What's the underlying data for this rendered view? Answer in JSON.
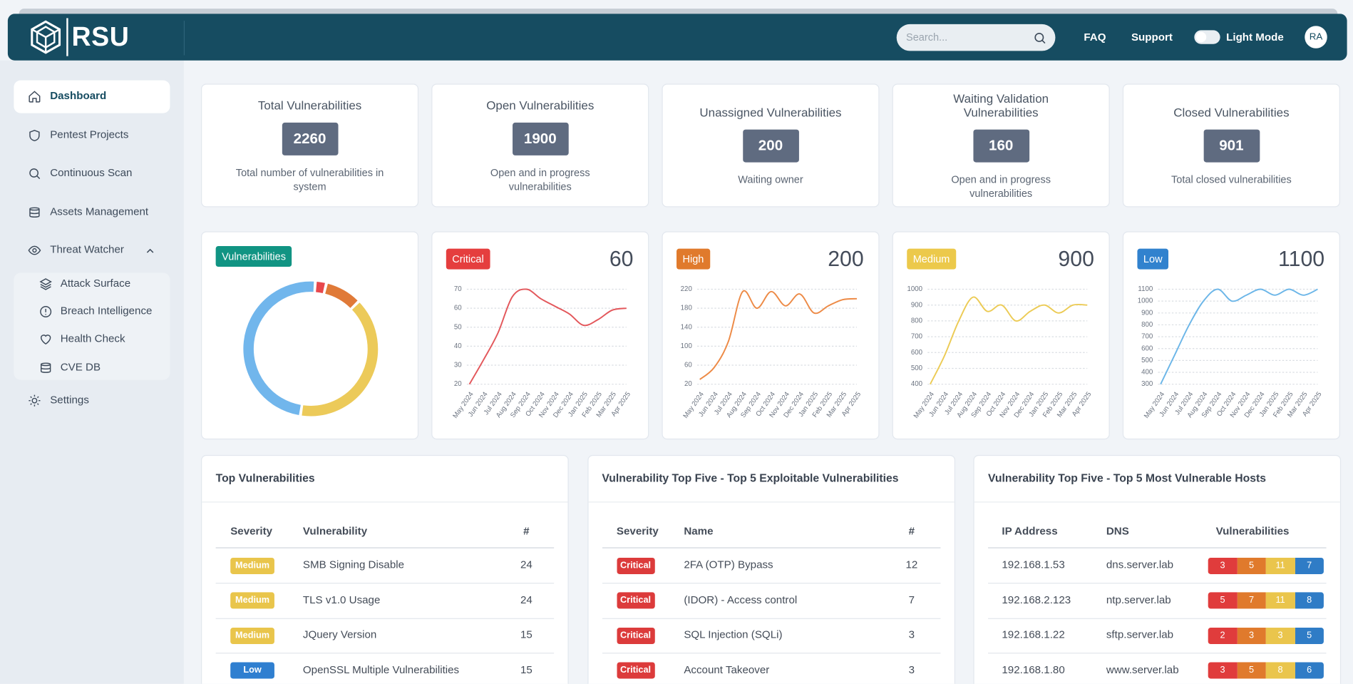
{
  "header": {
    "logo": "RSU",
    "search_placeholder": "Search...",
    "links": [
      "FAQ",
      "Support"
    ],
    "mode_label": "Light Mode",
    "avatar": "RA"
  },
  "sidebar": {
    "items": [
      "Dashboard",
      "Pentest Projects",
      "Continuous Scan",
      "Assets Management",
      "Threat Watcher",
      "Settings"
    ],
    "submenu": [
      "Attack Surface",
      "Breach Intelligence",
      "Health Check",
      "CVE DB"
    ]
  },
  "stat_cards": [
    {
      "title": "Total Vulnerabilities",
      "value": 2260,
      "description": "Total number of vulnerabilities in system"
    },
    {
      "title": "Open Vulnerabilities",
      "value": 1900,
      "description": "Open and in progress vulnerabilities"
    },
    {
      "title": "Unassigned Vulnerabilities",
      "value": 200,
      "description": "Waiting owner"
    },
    {
      "title": "Waiting Validation Vulnerabilities",
      "value": 160,
      "description": "Open and in progress vulnerabilities"
    },
    {
      "title": "Closed Vulnerabilities",
      "value": 901,
      "description": "Total closed vulnerabilities"
    }
  ],
  "chart_data": [
    {
      "type": "donut",
      "title": "Vulnerabilities",
      "title_color": "#119483",
      "values": [
        60,
        200,
        900,
        1100
      ],
      "colors": [
        "#e8474c",
        "#e07a38",
        "#ecca59",
        "#71b6ec"
      ]
    },
    {
      "type": "line",
      "badge": "Critical",
      "badge_color": "#e53e3e",
      "total": 60,
      "color": "#e3575b",
      "categories": [
        "May 2024",
        "Jun 2024",
        "Jul 2024",
        "Aug 2024",
        "Sep 2024",
        "Oct 2024",
        "Nov 2024",
        "Dec 2024",
        "Jan 2025",
        "Feb 2025",
        "Mar 2025",
        "Apr 2025"
      ],
      "values": [
        20,
        33,
        47,
        66,
        70,
        65,
        61,
        57,
        51,
        54,
        59,
        60
      ],
      "ylim": [
        20,
        70
      ],
      "yticks": [
        20,
        30,
        40,
        50,
        60,
        70
      ],
      "grid": true
    },
    {
      "type": "line",
      "badge": "High",
      "badge_color": "#e07a2c",
      "total": 200,
      "color": "#ed8a46",
      "categories": [
        "May 2024",
        "Jun 2024",
        "Jul 2024",
        "Aug 2024",
        "Sep 2024",
        "Oct 2024",
        "Nov 2024",
        "Dec 2024",
        "Jan 2025",
        "Feb 2025",
        "Mar 2025",
        "Apr 2025"
      ],
      "values": [
        30,
        55,
        110,
        215,
        180,
        215,
        185,
        210,
        170,
        185,
        198,
        200
      ],
      "ylim": [
        20,
        220
      ],
      "yticks": [
        20,
        60,
        100,
        140,
        180,
        220
      ],
      "grid": true
    },
    {
      "type": "line",
      "badge": "Medium",
      "badge_color": "#ecc94b",
      "total": 900,
      "color": "#eccb55",
      "categories": [
        "May 2024",
        "Jun 2024",
        "Jul 2024",
        "Aug 2024",
        "Sep 2024",
        "Oct 2024",
        "Nov 2024",
        "Dec 2024",
        "Jan 2025",
        "Feb 2025",
        "Mar 2025",
        "Apr 2025"
      ],
      "values": [
        400,
        580,
        800,
        950,
        860,
        900,
        800,
        860,
        900,
        850,
        900,
        900
      ],
      "ylim": [
        400,
        1000
      ],
      "yticks": [
        400,
        500,
        600,
        700,
        800,
        900,
        1000
      ],
      "grid": true
    },
    {
      "type": "line",
      "badge": "Low",
      "badge_color": "#3182ce",
      "total": 1100,
      "color": "#6cb6e8",
      "categories": [
        "May 2024",
        "Jun 2024",
        "Jul 2024",
        "Aug 2024",
        "Sep 2024",
        "Oct 2024",
        "Nov 2024",
        "Dec 2024",
        "Jan 2025",
        "Feb 2025",
        "Mar 2025",
        "Apr 2025"
      ],
      "values": [
        300,
        550,
        800,
        1000,
        1100,
        1000,
        1050,
        1100,
        1050,
        1100,
        1050,
        1100
      ],
      "ylim": [
        300,
        1100
      ],
      "yticks": [
        300,
        400,
        500,
        600,
        700,
        800,
        900,
        1000,
        1100
      ],
      "grid": true
    }
  ],
  "severity_colors": {
    "Critical": "#dc3b3b",
    "High": "#e07a2c",
    "Medium": "#e9c54b",
    "Low": "#2f7fd0"
  },
  "tables": [
    {
      "title": "Top Vulnerabilities",
      "columns": [
        "Severity",
        "Vulnerability",
        "#"
      ],
      "rows": [
        [
          "Medium",
          "SMB Signing Disable",
          24
        ],
        [
          "Medium",
          "TLS v1.0 Usage",
          24
        ],
        [
          "Medium",
          "JQuery Version",
          15
        ],
        [
          "Low",
          "OpenSSL Multiple Vulnerabilities",
          15
        ]
      ]
    },
    {
      "title": "Vulnerability Top Five - Top 5 Exploitable Vulnerabilities",
      "columns": [
        "Severity",
        "Name",
        "#"
      ],
      "rows": [
        [
          "Critical",
          "2FA (OTP) Bypass",
          12
        ],
        [
          "Critical",
          "(IDOR) - Access control",
          7
        ],
        [
          "Critical",
          "SQL Injection (SQLi)",
          3
        ],
        [
          "Critical",
          "Account Takeover",
          3
        ]
      ]
    },
    {
      "title": "Vulnerability Top Five - Top 5 Most Vulnerable Hosts",
      "columns": [
        "IP Address",
        "DNS",
        "Vulnerabilities"
      ],
      "cell_colors": [
        "#e03c3c",
        "#e07a2c",
        "#eac54c",
        "#2f7cc6"
      ],
      "rows": [
        [
          "192.168.1.53",
          "dns.server.lab",
          [
            3,
            5,
            11,
            7
          ]
        ],
        [
          "192.168.2.123",
          "ntp.server.lab",
          [
            5,
            7,
            11,
            8
          ]
        ],
        [
          "192.168.1.22",
          "sftp.server.lab",
          [
            2,
            3,
            3,
            5
          ]
        ],
        [
          "192.168.1.80",
          "www.server.lab",
          [
            3,
            5,
            8,
            6
          ]
        ]
      ]
    }
  ]
}
